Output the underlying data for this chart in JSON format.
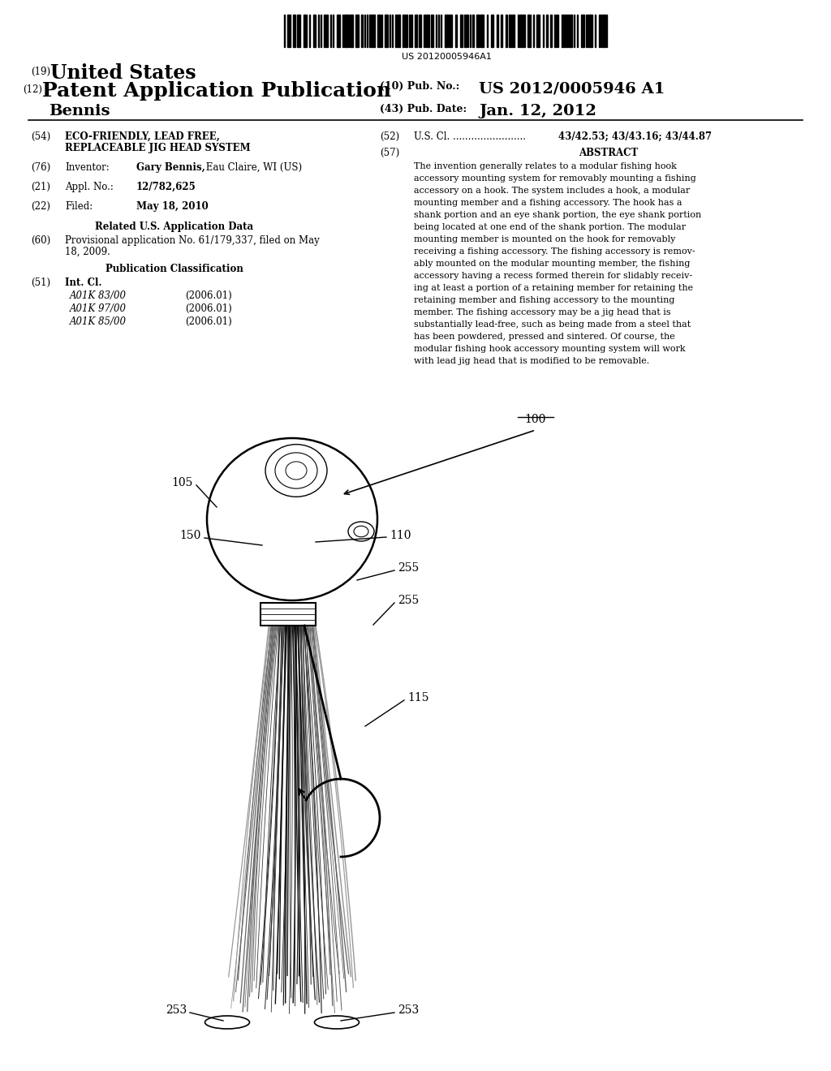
{
  "bg_color": "#ffffff",
  "barcode_text": "US 20120005946A1",
  "abstract_lines": [
    "The invention generally relates to a modular fishing hook",
    "accessory mounting system for removably mounting a fishing",
    "accessory on a hook. The system includes a hook, a modular",
    "mounting member and a fishing accessory. The hook has a",
    "shank portion and an eye shank portion, the eye shank portion",
    "being located at one end of the shank portion. The modular",
    "mounting member is mounted on the hook for removably",
    "receiving a fishing accessory. The fishing accessory is remov-",
    "ably mounted on the modular mounting member, the fishing",
    "accessory having a recess formed therein for slidably receiv-",
    "ing at least a portion of a retaining member for retaining the",
    "retaining member and fishing accessory to the mounting",
    "member. The fishing accessory may be a jig head that is",
    "substantially lead-free, such as being made from a steel that",
    "has been powdered, pressed and sintered. Of course, the",
    "modular fishing hook accessory mounting system will work",
    "with lead jig head that is modified to be removable."
  ],
  "int_cl_entries": [
    [
      "A01K 83/00",
      "(2006.01)"
    ],
    [
      "A01K 97/00",
      "(2006.01)"
    ],
    [
      "A01K 85/00",
      "(2006.01)"
    ]
  ]
}
